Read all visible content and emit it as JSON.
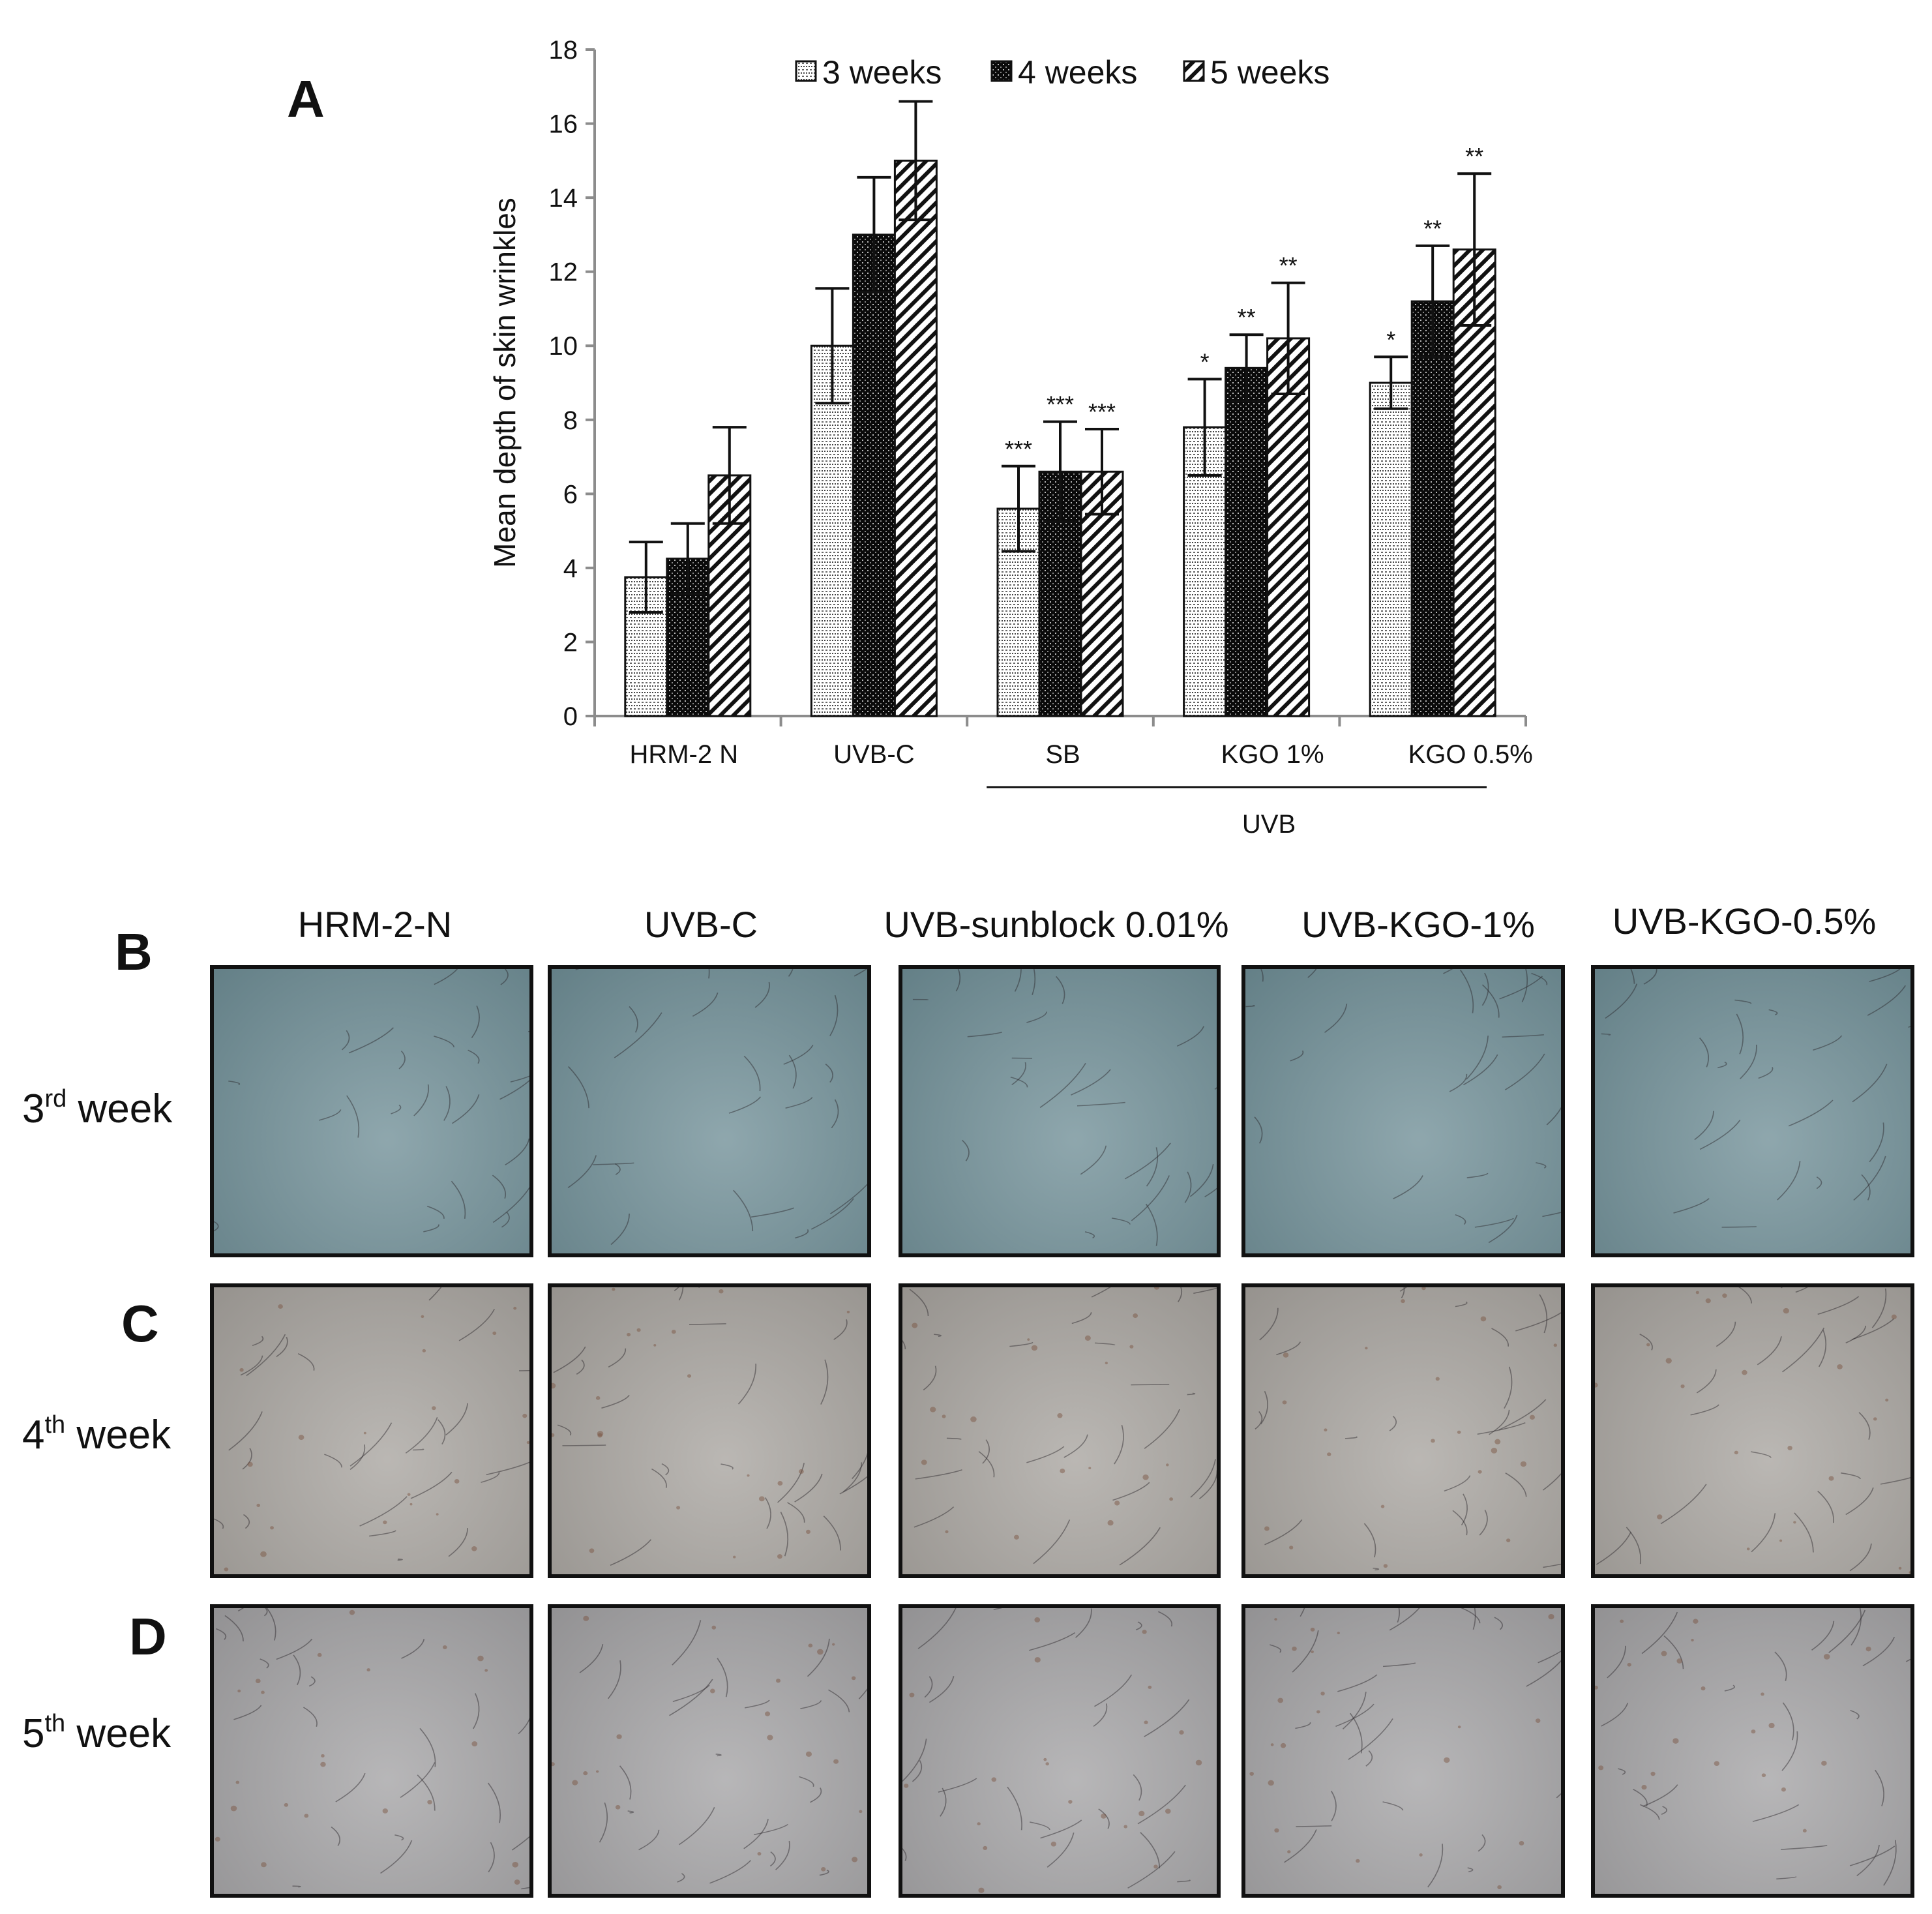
{
  "panels": {
    "a": "A",
    "b": "B",
    "c": "C",
    "d": "D"
  },
  "chart_data": {
    "type": "bar",
    "ylabel": "Mean depth of skin wrinkles",
    "ylim": [
      0,
      18
    ],
    "yticks": [
      0,
      2,
      4,
      6,
      8,
      10,
      12,
      14,
      16,
      18
    ],
    "categories": [
      "HRM-2 N",
      "UVB-C",
      "SB",
      "KGO 1%",
      "KGO 0.5%"
    ],
    "group_label": "UVB",
    "grid": false,
    "legend_position": "top",
    "series": [
      {
        "name": "3 weeks",
        "pattern": "horizontal-dotted",
        "values": [
          3.75,
          10.0,
          5.6,
          7.8,
          9.0
        ],
        "errors": [
          0.95,
          1.55,
          1.15,
          1.3,
          0.7
        ],
        "significance": [
          "",
          "",
          "***",
          "*",
          "*"
        ]
      },
      {
        "name": "4 weeks",
        "pattern": "black-dotted",
        "values": [
          4.25,
          13.0,
          6.6,
          9.4,
          11.2
        ],
        "errors": [
          0.95,
          1.55,
          1.35,
          0.9,
          1.5
        ],
        "significance": [
          "",
          "",
          "***",
          "**",
          "**"
        ]
      },
      {
        "name": "5 weeks",
        "pattern": "diagonal-stripes",
        "values": [
          6.5,
          15.0,
          6.6,
          10.2,
          12.6
        ],
        "errors": [
          1.3,
          1.6,
          1.15,
          1.5,
          2.05
        ],
        "significance": [
          "",
          "",
          "***",
          "**",
          "**"
        ]
      }
    ]
  },
  "photo_grid": {
    "columns": [
      "HRM-2-N",
      "UVB-C",
      "UVB-sunblock 0.01%",
      "UVB-KGO-1%",
      "UVB-KGO-0.5%"
    ],
    "rows": [
      {
        "num": "3",
        "sup": "rd",
        "suffix": " week"
      },
      {
        "num": "4",
        "sup": "th",
        "suffix": " week"
      },
      {
        "num": "5",
        "sup": "th",
        "suffix": " week"
      }
    ],
    "row_tints": [
      "#6f8e96",
      "#a7a39e",
      "#a3a2a4"
    ]
  }
}
